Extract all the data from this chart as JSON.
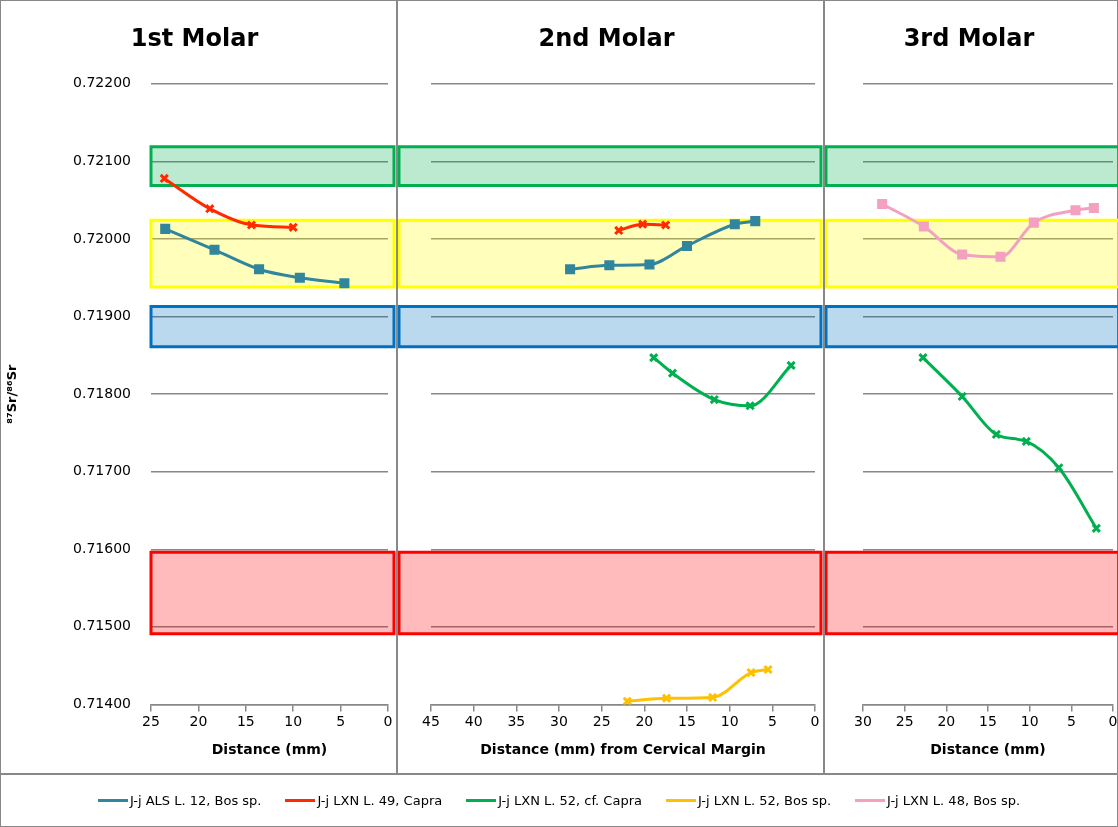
{
  "chart_data": [
    {
      "type": "line",
      "title": "1st Molar",
      "xlabel": "Distance (mm)",
      "ylabel": "⁸⁷Sr/⁸⁶Sr",
      "xlim": [
        25,
        0
      ],
      "xticks": [
        25,
        20,
        15,
        10,
        5,
        0
      ],
      "ylim": [
        0.714,
        0.722
      ],
      "yticks": [
        {
          "value": 0.714,
          "label": "0.71400"
        },
        {
          "value": 0.715,
          "label": "0.71500"
        },
        {
          "value": 0.716,
          "label": "0.71600"
        },
        {
          "value": 0.717,
          "label": "0.71700"
        },
        {
          "value": 0.718,
          "label": "0.71800"
        },
        {
          "value": 0.719,
          "label": "0.71900"
        },
        {
          "value": 0.72,
          "label": "0.72000"
        },
        {
          "value": 0.721,
          "label": "0.72100"
        },
        {
          "value": 0.722,
          "label": "0.72200"
        }
      ],
      "grid": "y",
      "legend": "bottom",
      "bands": [
        {
          "axis": "y",
          "from": 0.72069,
          "to": 0.72119,
          "color": "#00b050"
        },
        {
          "axis": "y",
          "from": 0.71938,
          "to": 0.72024,
          "color": "#ffff00"
        },
        {
          "axis": "y",
          "from": 0.71861,
          "to": 0.71913,
          "color": "#0070c0"
        },
        {
          "axis": "y",
          "from": 0.71491,
          "to": 0.71596,
          "color": "#ff0000"
        }
      ],
      "series": [
        {
          "name": "J-j ALS L. 12, Bos sp.",
          "color": "#31859c",
          "marker": "square",
          "x": [
            23.5,
            18.3,
            13.6,
            9.3,
            4.6
          ],
          "values": [
            0.72013,
            0.71986,
            0.71961,
            0.7195,
            0.71943
          ]
        },
        {
          "name": "J-j LXN L. 49, Capra",
          "color": "#ff2a00",
          "marker": "cross",
          "x": [
            23.6,
            18.8,
            14.4,
            10.0
          ],
          "values": [
            0.72078,
            0.72039,
            0.72018,
            0.72015
          ]
        }
      ]
    },
    {
      "type": "line",
      "title": "2nd Molar",
      "xlabel": "Distance (mm) from Cervical Margin",
      "xlim": [
        45,
        0
      ],
      "xticks": [
        45,
        40,
        35,
        30,
        25,
        20,
        15,
        10,
        5,
        0
      ],
      "ylim": [
        0.714,
        0.722
      ],
      "yticks": [
        0.714,
        0.715,
        0.716,
        0.717,
        0.718,
        0.719,
        0.72,
        0.721,
        0.722
      ],
      "grid": "y",
      "legend": "bottom",
      "tick_labels": "x",
      "bands": [
        {
          "axis": "y",
          "from": 0.72069,
          "to": 0.72119,
          "color": "#00b050"
        },
        {
          "axis": "y",
          "from": 0.71938,
          "to": 0.72024,
          "color": "#ffff00"
        },
        {
          "axis": "y",
          "from": 0.71861,
          "to": 0.71913,
          "color": "#0070c0"
        },
        {
          "axis": "y",
          "from": 0.71491,
          "to": 0.71596,
          "color": "#ff0000"
        }
      ],
      "series": [
        {
          "name": "J-j LXN L. 52, cf. Capra",
          "color": "#00b050",
          "marker": "cross",
          "x": [
            18.9,
            16.7,
            11.8,
            7.6,
            2.8
          ],
          "values": [
            0.71847,
            0.71827,
            0.71793,
            0.71785,
            0.71837
          ]
        },
        {
          "name": "J-j ALS L. 12, Bos sp.",
          "color": "#31859c",
          "marker": "square",
          "x": [
            28.7,
            24.1,
            19.4,
            15.0,
            9.4,
            7.0
          ],
          "values": [
            0.71961,
            0.71966,
            0.71967,
            0.71991,
            0.72019,
            0.72023
          ]
        },
        {
          "name": "J-j LXN L. 52, Bos sp.",
          "color": "#ffc000",
          "marker": "cross",
          "x": [
            22.0,
            17.4,
            12.0,
            7.5,
            5.5
          ],
          "values": [
            0.71404,
            0.71408,
            0.71409,
            0.71441,
            0.71445
          ]
        },
        {
          "name": "J-j LXN L. 49, Capra",
          "color": "#ff2a00",
          "marker": "cross",
          "x": [
            23.0,
            20.2,
            17.5
          ],
          "values": [
            0.72011,
            0.72019,
            0.72018
          ]
        }
      ]
    },
    {
      "type": "line",
      "title": "3rd Molar",
      "xlabel": "Distance (mm)",
      "xlim": [
        30,
        0
      ],
      "xticks": [
        30,
        25,
        20,
        15,
        10,
        5,
        0
      ],
      "ylim": [
        0.714,
        0.722
      ],
      "yticks": [
        0.714,
        0.715,
        0.716,
        0.717,
        0.718,
        0.719,
        0.72,
        0.721,
        0.722
      ],
      "grid": "y",
      "legend": "bottom",
      "tick_labels": "x",
      "bands": [
        {
          "axis": "y",
          "from": 0.72069,
          "to": 0.72119,
          "color": "#00b050"
        },
        {
          "axis": "y",
          "from": 0.71938,
          "to": 0.72024,
          "color": "#ffff00"
        },
        {
          "axis": "y",
          "from": 0.71861,
          "to": 0.71913,
          "color": "#0070c0"
        },
        {
          "axis": "y",
          "from": 0.71491,
          "to": 0.71596,
          "color": "#ff0000"
        }
      ],
      "series": [
        {
          "name": "J-j LXN L. 48, Bos sp.",
          "color": "#f4a0c0",
          "marker": "square",
          "x": [
            27.7,
            22.7,
            18.1,
            13.5,
            9.5,
            4.5,
            2.3
          ],
          "values": [
            0.72045,
            0.72016,
            0.7198,
            0.71977,
            0.72021,
            0.72037,
            0.7204
          ]
        },
        {
          "name": "J-j LXN L. 52, cf. Capra",
          "color": "#00b050",
          "marker": "cross",
          "x": [
            22.8,
            18.1,
            14.0,
            10.4,
            6.5,
            2.0
          ],
          "values": [
            0.71847,
            0.71797,
            0.71748,
            0.71739,
            0.71705,
            0.71627
          ]
        }
      ]
    }
  ]
}
